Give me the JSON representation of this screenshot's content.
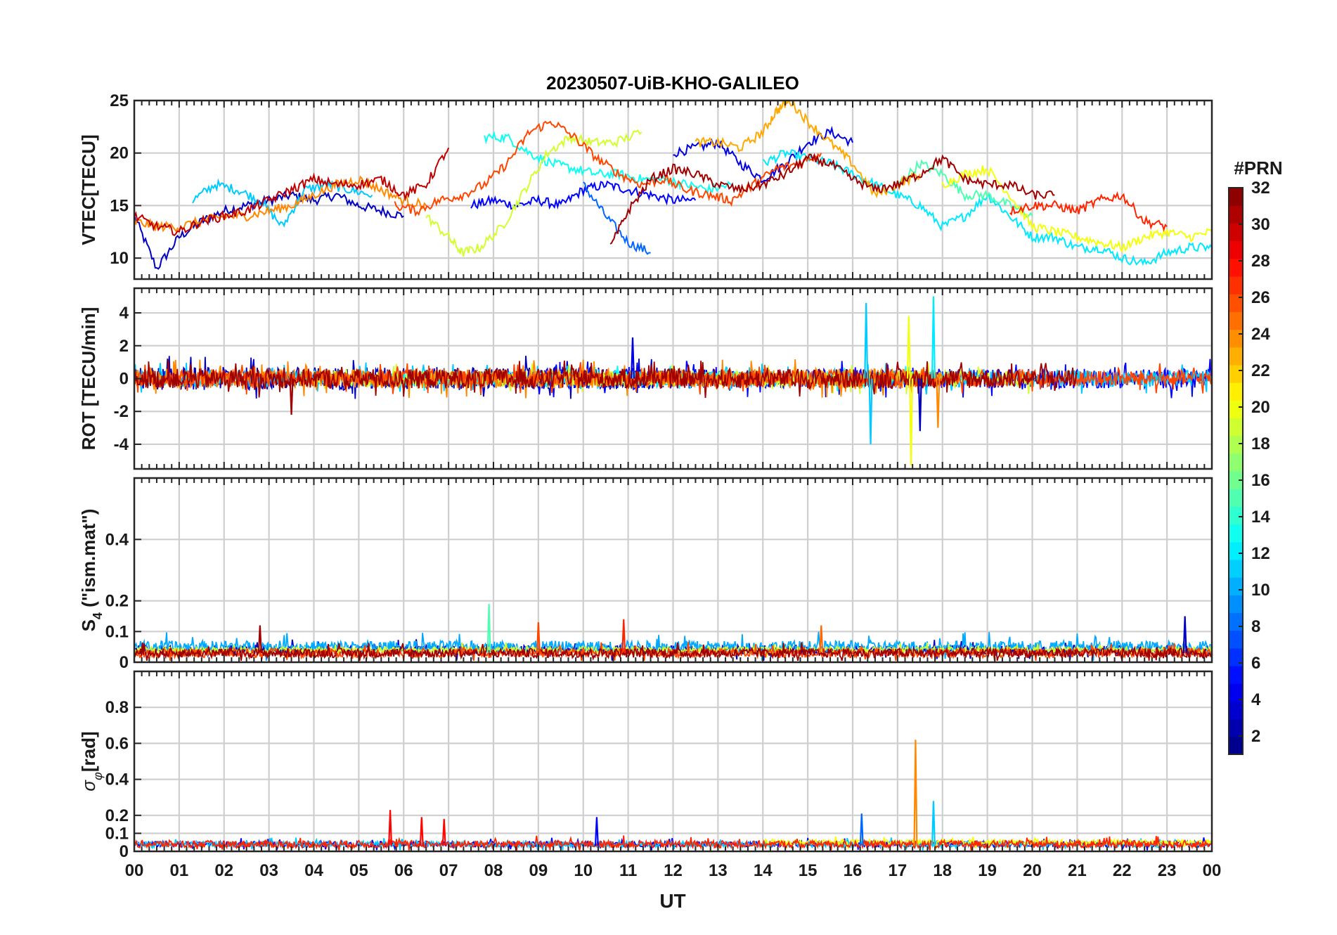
{
  "chart_data": {
    "type": "line",
    "title": "20230507-UiB-KHO-GALILEO",
    "xlabel": "UT",
    "x_tick_labels": [
      "00",
      "01",
      "02",
      "03",
      "04",
      "05",
      "06",
      "07",
      "08",
      "09",
      "10",
      "11",
      "12",
      "13",
      "14",
      "15",
      "16",
      "17",
      "18",
      "19",
      "20",
      "21",
      "22",
      "23",
      "00"
    ],
    "xlim_hours": [
      0,
      24
    ],
    "grid": true,
    "colorbar": {
      "title": "#PRN",
      "range": [
        1,
        32
      ],
      "tick_labels": [
        "2",
        "4",
        "6",
        "8",
        "10",
        "12",
        "14",
        "16",
        "18",
        "20",
        "22",
        "24",
        "26",
        "28",
        "30",
        "32"
      ],
      "tick_values": [
        2,
        4,
        6,
        8,
        10,
        12,
        14,
        16,
        18,
        20,
        22,
        24,
        26,
        28,
        30,
        32
      ],
      "colormap": "jet",
      "placement": "right"
    },
    "panels": [
      {
        "name": "vtec",
        "ylabel": "VTEC[TECU]",
        "ylim": [
          8,
          25
        ],
        "yticks": [
          10,
          15,
          20,
          25
        ],
        "ytick_labels": [
          "10",
          "15",
          "20",
          "25"
        ],
        "series": [
          {
            "prn": 3,
            "x": [
              0,
              0.5,
              1,
              1.5,
              2,
              2.5,
              3,
              3.5,
              4,
              4.5,
              5,
              5.5,
              6
            ],
            "y": [
              14,
              9,
              12,
              13.5,
              14.5,
              15,
              15.5,
              16,
              15.5,
              16,
              15,
              14.5,
              14
            ]
          },
          {
            "prn": 5,
            "x": [
              7.5,
              8,
              8.5,
              9,
              9.5,
              10,
              10.5,
              11,
              11.5,
              12,
              12.5
            ],
            "y": [
              15,
              15.5,
              15,
              15.5,
              15,
              16.5,
              17,
              16.5,
              16,
              15.5,
              15.5
            ]
          },
          {
            "prn": 4,
            "x": [
              12,
              12.5,
              13,
              13.5,
              14,
              14.5,
              15,
              15.5,
              16
            ],
            "y": [
              20,
              20.5,
              21,
              19,
              17.5,
              19,
              21,
              22,
              21
            ]
          },
          {
            "prn": 8,
            "x": [
              10,
              10.5,
              11,
              11.5
            ],
            "y": [
              17,
              14,
              11.5,
              10.5
            ]
          },
          {
            "prn": 11,
            "x": [
              1.3,
              1.8,
              2.3,
              2.8,
              3.3,
              3.8,
              4.3,
              4.8,
              5.3
            ],
            "y": [
              15.5,
              17,
              16.5,
              15.5,
              13,
              16.5,
              17,
              16.5,
              16
            ]
          },
          {
            "prn": 12,
            "x": [
              14,
              14.5,
              15,
              15.5,
              16,
              16.5,
              17,
              17.5,
              18,
              18.5,
              19,
              19.5,
              20,
              20.5,
              21,
              21.5,
              22,
              22.5,
              23,
              23.5,
              24
            ],
            "y": [
              19,
              20,
              19.5,
              19,
              18,
              17,
              16,
              15,
              13,
              14,
              16,
              14,
              12,
              12,
              11,
              11,
              10,
              9.5,
              10.5,
              11,
              11
            ]
          },
          {
            "prn": 13,
            "x": [
              7.8,
              8.3,
              8.8,
              9.3,
              9.8,
              10.3,
              10.8,
              11.3,
              11.8,
              12.3,
              12.8,
              13.3
            ],
            "y": [
              21.5,
              21.5,
              20,
              19,
              18.5,
              18,
              18,
              17.5,
              17.5,
              17,
              16.5,
              17
            ]
          },
          {
            "prn": 15,
            "x": [
              17,
              17.5,
              18,
              18.5,
              19,
              19.5,
              20
            ],
            "y": [
              17,
              19,
              18,
              16,
              16,
              15,
              14
            ]
          },
          {
            "prn": 19,
            "x": [
              6.5,
              7,
              7.3,
              7.7,
              8.2,
              8.7,
              9.2,
              9.7,
              10.2,
              10.7,
              11.3
            ],
            "y": [
              14,
              12,
              10.5,
              11,
              13,
              16.5,
              20,
              21.5,
              21,
              21,
              22
            ]
          },
          {
            "prn": 20,
            "x": [
              18,
              18.5,
              19,
              19.5,
              20,
              20.5,
              21,
              21.5,
              22,
              22.5,
              23,
              23.5,
              24
            ],
            "y": [
              17,
              18,
              18.5,
              16,
              13,
              12.5,
              12,
              11.5,
              11,
              12,
              12.5,
              12,
              12.5
            ]
          },
          {
            "prn": 24,
            "x": [
              0,
              0.5,
              1,
              1.5,
              2,
              2.5,
              3,
              3.5,
              4,
              4.5,
              5,
              5.5,
              6,
              6.5
            ],
            "y": [
              13.5,
              13,
              13,
              13.5,
              14,
              14,
              14.5,
              15,
              16,
              17,
              17.5,
              16.5,
              15.5,
              15
            ]
          },
          {
            "prn": 23,
            "x": [
              12.5,
              13,
              13.5,
              14,
              14.3,
              14.6,
              15,
              15.5,
              16,
              16.5,
              17,
              17.5
            ],
            "y": [
              21,
              21,
              20.5,
              22,
              24,
              25,
              23,
              21,
              19,
              16,
              17,
              18
            ]
          },
          {
            "prn": 26,
            "x": [
              5.8,
              6.3,
              6.8,
              7.3,
              7.8,
              8.3,
              8.8,
              9.3,
              9.8,
              10.3,
              10.8,
              11.3,
              11.8,
              12.3,
              12.8,
              13.3,
              13.8,
              14.3,
              14.8,
              15.3
            ],
            "y": [
              15,
              14.5,
              15.5,
              16,
              17,
              19,
              22,
              23,
              21.5,
              19.5,
              18,
              17,
              17.5,
              16.5,
              16,
              15.5,
              17,
              18.5,
              19,
              20
            ]
          },
          {
            "prn": 27,
            "x": [
              19.5,
              20,
              20.5,
              21,
              21.5,
              22,
              22.5,
              23
            ],
            "y": [
              14.5,
              15,
              15,
              14.5,
              15.5,
              16,
              13.5,
              13
            ]
          },
          {
            "prn": 30,
            "x": [
              0,
              0.5,
              1,
              1.5,
              2,
              2.5,
              3,
              3.5,
              4,
              4.5,
              5,
              5.5,
              6,
              6.5,
              7
            ],
            "y": [
              14,
              13,
              12.5,
              13.5,
              14,
              14.5,
              15.5,
              16.5,
              17.5,
              17,
              17,
              17.5,
              16,
              17,
              20.5
            ]
          },
          {
            "prn": 31,
            "x": [
              10.6,
              11,
              11.5,
              12,
              12.5,
              13,
              13.5,
              14,
              14.5,
              15,
              15.5,
              16,
              16.5,
              17,
              17.5,
              18,
              18.5,
              19,
              19.5,
              20,
              20.5
            ],
            "y": [
              11,
              14.5,
              17.5,
              18.5,
              18,
              17,
              16.5,
              17,
              18,
              19.5,
              19,
              17.5,
              16.5,
              17,
              18,
              19.5,
              17.5,
              17,
              17,
              16,
              16
            ]
          }
        ]
      },
      {
        "name": "rot",
        "ylabel": "ROT [TECU/min]",
        "ylim": [
          -5.5,
          5.5
        ],
        "yticks": [
          -4,
          -2,
          0,
          2,
          4
        ],
        "ytick_labels": [
          "-4",
          "-2",
          "0",
          "2",
          "4"
        ],
        "noise_series": [
          {
            "prn": 3,
            "x_range": [
              0,
              12
            ],
            "amplitude": 0.7
          },
          {
            "prn": 5,
            "x_range": [
              8,
              24
            ],
            "amplitude": 0.6
          },
          {
            "prn": 11,
            "x_range": [
              0,
              24
            ],
            "amplitude": 0.5
          },
          {
            "prn": 13,
            "x_range": [
              6,
              18
            ],
            "amplitude": 0.4
          },
          {
            "prn": 19,
            "x_range": [
              4,
              20
            ],
            "amplitude": 0.5
          },
          {
            "prn": 24,
            "x_range": [
              0,
              18
            ],
            "amplitude": 0.6
          },
          {
            "prn": 26,
            "x_range": [
              0,
              24
            ],
            "amplitude": 0.5
          },
          {
            "prn": 31,
            "x_range": [
              0,
              21
            ],
            "amplitude": 0.6
          }
        ],
        "spikes": [
          {
            "prn": 31,
            "x": 3.5,
            "y": -2.2
          },
          {
            "prn": 4,
            "x": 11.1,
            "y": 2.5
          },
          {
            "prn": 11,
            "x": 16.3,
            "y": 4.6
          },
          {
            "prn": 11,
            "x": 16.4,
            "y": -4.0
          },
          {
            "prn": 20,
            "x": 17.25,
            "y": 3.8
          },
          {
            "prn": 20,
            "x": 17.3,
            "y": -5.3
          },
          {
            "prn": 12,
            "x": 17.8,
            "y": 5.0
          },
          {
            "prn": 3,
            "x": 17.5,
            "y": -3.2
          },
          {
            "prn": 24,
            "x": 17.9,
            "y": -3.0
          }
        ]
      },
      {
        "name": "s4",
        "ylabel": "S4 (\"ism.mat\")",
        "ylim": [
          0,
          0.6
        ],
        "yticks": [
          0,
          0.1,
          0.2,
          0.4
        ],
        "ytick_labels": [
          "0",
          "0.1",
          "0.2",
          "0.4"
        ],
        "noise_series": [
          {
            "prn": 3,
            "x_range": [
              0,
              24
            ],
            "base": 0.04,
            "amplitude": 0.03
          },
          {
            "prn": 10,
            "x_range": [
              0,
              24
            ],
            "base": 0.05,
            "amplitude": 0.04
          },
          {
            "prn": 19,
            "x_range": [
              0,
              24
            ],
            "base": 0.04,
            "amplitude": 0.02
          },
          {
            "prn": 26,
            "x_range": [
              0,
              24
            ],
            "base": 0.03,
            "amplitude": 0.03
          },
          {
            "prn": 31,
            "x_range": [
              0,
              24
            ],
            "base": 0.03,
            "amplitude": 0.03
          }
        ],
        "spikes": [
          {
            "prn": 15,
            "x": 7.9,
            "y": 0.19
          },
          {
            "prn": 26,
            "x": 9.0,
            "y": 0.13
          },
          {
            "prn": 27,
            "x": 10.9,
            "y": 0.14
          },
          {
            "prn": 3,
            "x": 23.4,
            "y": 0.15
          },
          {
            "prn": 31,
            "x": 2.8,
            "y": 0.12
          },
          {
            "prn": 25,
            "x": 15.3,
            "y": 0.12
          }
        ]
      },
      {
        "name": "sigma_phi",
        "ylabel": "σφ[rad]",
        "ylim": [
          0,
          1
        ],
        "yticks": [
          0,
          0.1,
          0.2,
          0.4,
          0.6,
          0.8
        ],
        "ytick_labels": [
          "0",
          "0.1",
          "0.2",
          "0.4",
          "0.6",
          "0.8"
        ],
        "noise_series": [
          {
            "prn": 5,
            "x_range": [
              0,
              24
            ],
            "base": 0.04,
            "amplitude": 0.03
          },
          {
            "prn": 11,
            "x_range": [
              0,
              24
            ],
            "base": 0.04,
            "amplitude": 0.03
          },
          {
            "prn": 20,
            "x_range": [
              14,
              24
            ],
            "base": 0.05,
            "amplitude": 0.03
          },
          {
            "prn": 27,
            "x_range": [
              0,
              24
            ],
            "base": 0.04,
            "amplitude": 0.04
          }
        ],
        "spikes": [
          {
            "prn": 24,
            "x": 17.4,
            "y": 0.62
          },
          {
            "prn": 11,
            "x": 17.8,
            "y": 0.28
          },
          {
            "prn": 8,
            "x": 16.2,
            "y": 0.21
          },
          {
            "prn": 28,
            "x": 5.7,
            "y": 0.23
          },
          {
            "prn": 28,
            "x": 6.4,
            "y": 0.19
          },
          {
            "prn": 28,
            "x": 6.9,
            "y": 0.18
          },
          {
            "prn": 5,
            "x": 10.3,
            "y": 0.19
          }
        ]
      }
    ]
  }
}
